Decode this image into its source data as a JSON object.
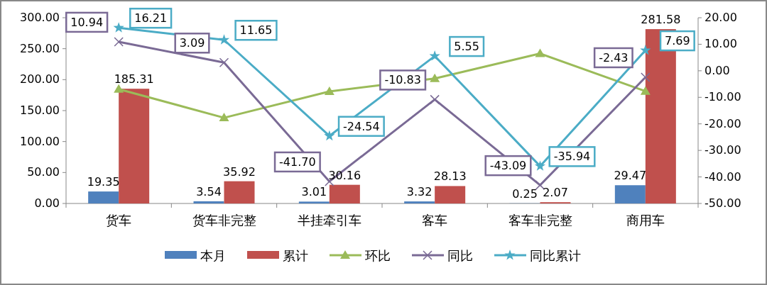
{
  "chart_data": {
    "type": "bar",
    "categories": [
      "货车",
      "货车非完整",
      "半挂牵引车",
      "客车",
      "客车非完整",
      "商用车"
    ],
    "series": [
      {
        "name": "本月",
        "color": "#4f81bd",
        "values": [
          19.35,
          3.54,
          3.01,
          3.32,
          0.25,
          29.47
        ],
        "value_labels": [
          "19.35",
          "3.54",
          "3.01",
          "3.32",
          "0.25",
          "29.47"
        ]
      },
      {
        "name": "累计",
        "color": "#c0504d",
        "values": [
          185.31,
          35.92,
          30.16,
          28.13,
          2.07,
          281.58
        ],
        "value_labels": [
          "185.31",
          "35.92",
          "30.16",
          "28.13",
          "2.07",
          "281.58"
        ]
      },
      {
        "name": "环比",
        "type": "line",
        "axis": "y2",
        "marker": "triangle",
        "color": "#9bbb59",
        "values": [
          -6.9,
          -17.7,
          -7.8,
          -2.9,
          6.5,
          -7.7
        ]
      },
      {
        "name": "同比",
        "type": "line",
        "axis": "y2",
        "marker": "cross",
        "color": "#7a6a95",
        "values": [
          10.94,
          3.09,
          -41.7,
          -10.83,
          -43.09,
          -2.43
        ],
        "value_labels": [
          "10.94",
          "3.09",
          "-41.70",
          "-10.83",
          "-43.09",
          "-2.43"
        ]
      },
      {
        "name": "同比累计",
        "type": "line",
        "axis": "y2",
        "marker": "star",
        "color": "#4bacc6",
        "values": [
          16.21,
          11.65,
          -24.54,
          5.55,
          -35.94,
          7.69
        ],
        "value_labels": [
          "16.21",
          "11.65",
          "-24.54",
          "5.55",
          "-35.94",
          "7.69"
        ]
      }
    ],
    "ylim": [
      0,
      300
    ],
    "yticks": [
      {
        "value": 0,
        "label": "0.00"
      },
      {
        "value": 50,
        "label": "50.00"
      },
      {
        "value": 100,
        "label": "100.00"
      },
      {
        "value": 150,
        "label": "150.00"
      },
      {
        "value": 200,
        "label": "200.00"
      },
      {
        "value": 250,
        "label": "250.00"
      },
      {
        "value": 300,
        "label": "300.00"
      }
    ],
    "y2lim": [
      -50,
      20
    ],
    "y2ticks": [
      {
        "value": -50,
        "label": "-50.00"
      },
      {
        "value": -40,
        "label": "-40.00"
      },
      {
        "value": -30,
        "label": "-30.00"
      },
      {
        "value": -20,
        "label": "-20.00"
      },
      {
        "value": -10,
        "label": "-10.00"
      },
      {
        "value": 0,
        "label": "0.00"
      },
      {
        "value": 10,
        "label": "10.00"
      },
      {
        "value": 20,
        "label": "20.00"
      }
    ],
    "legend": "bottom"
  }
}
